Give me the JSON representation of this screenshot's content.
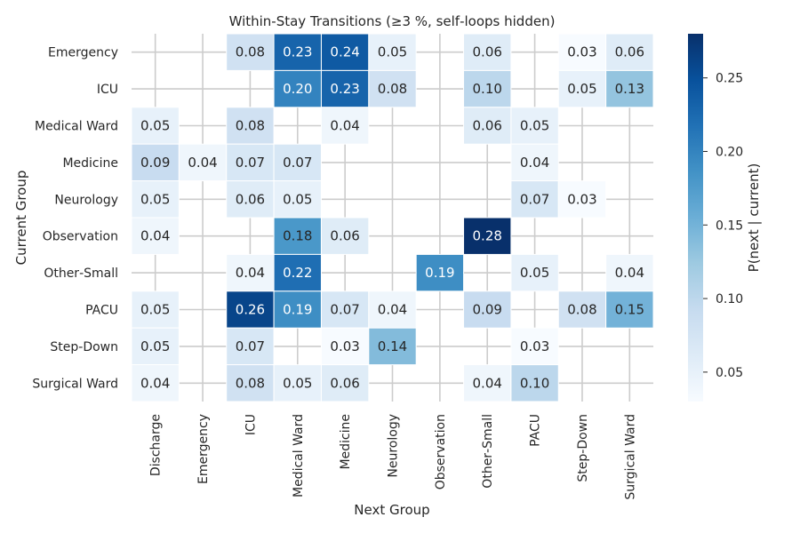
{
  "chart_data": {
    "type": "heatmap",
    "title": "Within‐Stay Transitions (≥3 %, self‐loops hidden)",
    "xlabel": "Next Group",
    "ylabel": "Current Group",
    "x_categories": [
      "Discharge",
      "Emergency",
      "ICU",
      "Medical Ward",
      "Medicine",
      "Neurology",
      "Observation",
      "Other‐Small",
      "PACU",
      "Step‐Down",
      "Surgical Ward"
    ],
    "y_categories": [
      "Emergency",
      "ICU",
      "Medical Ward",
      "Medicine",
      "Neurology",
      "Observation",
      "Other‐Small",
      "PACU",
      "Step‐Down",
      "Surgical Ward"
    ],
    "values": [
      [
        null,
        null,
        0.08,
        0.23,
        0.24,
        0.05,
        null,
        0.06,
        null,
        0.03,
        0.06
      ],
      [
        null,
        null,
        null,
        0.2,
        0.23,
        0.08,
        null,
        0.1,
        null,
        0.05,
        0.13
      ],
      [
        0.05,
        null,
        0.08,
        null,
        0.04,
        null,
        null,
        0.06,
        0.05,
        null,
        null
      ],
      [
        0.09,
        0.04,
        0.07,
        0.07,
        null,
        null,
        null,
        null,
        0.04,
        null,
        null
      ],
      [
        0.05,
        null,
        0.06,
        0.05,
        null,
        null,
        null,
        null,
        0.07,
        0.03,
        null
      ],
      [
        0.04,
        null,
        null,
        0.18,
        0.06,
        null,
        null,
        0.28,
        null,
        null,
        null
      ],
      [
        null,
        null,
        0.04,
        0.22,
        null,
        null,
        0.19,
        null,
        0.05,
        null,
        0.04
      ],
      [
        0.05,
        null,
        0.26,
        0.19,
        0.07,
        0.04,
        null,
        0.09,
        null,
        0.08,
        0.15
      ],
      [
        0.05,
        null,
        0.07,
        null,
        0.03,
        0.14,
        null,
        null,
        0.03,
        null,
        null
      ],
      [
        0.04,
        null,
        0.08,
        0.05,
        0.06,
        null,
        null,
        0.04,
        0.1,
        null,
        null
      ]
    ],
    "colorbar": {
      "label": "P(next | current)",
      "range": [
        0.03,
        0.28
      ],
      "ticks": [
        "0.05",
        "0.10",
        "0.15",
        "0.20",
        "0.25"
      ],
      "colormap": "Blues"
    },
    "grid": true,
    "value_format": "0.00"
  }
}
